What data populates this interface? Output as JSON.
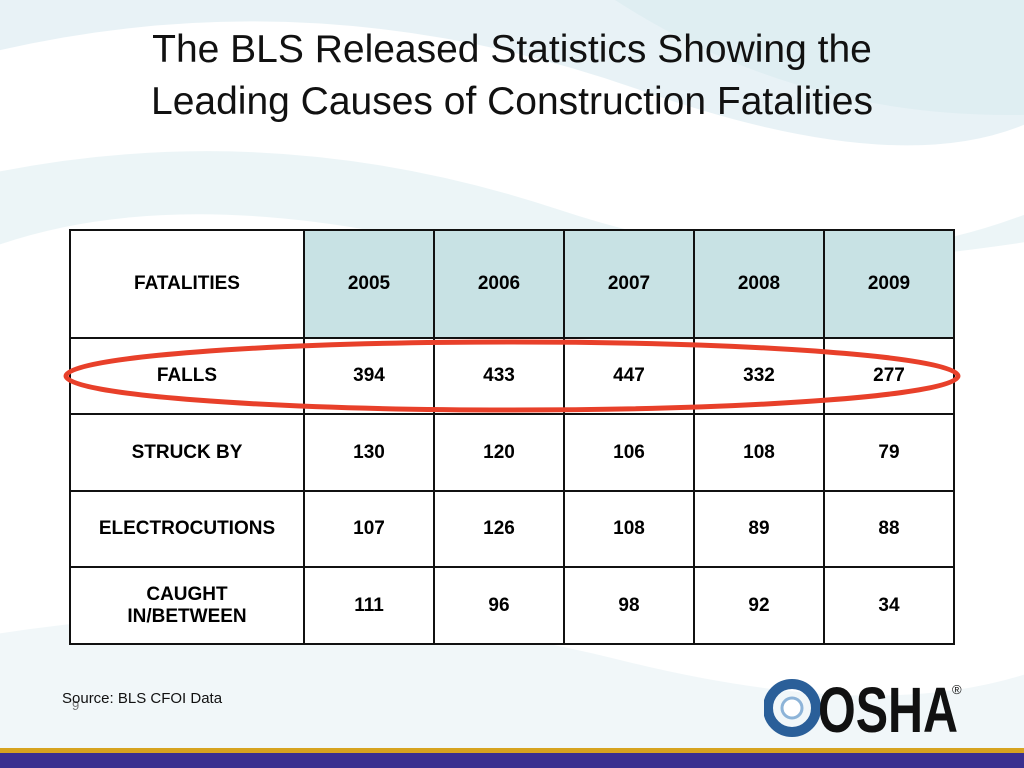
{
  "title": {
    "line1": "The BLS Released Statistics Showing the",
    "line2": "Leading Causes of Construction Fatalities"
  },
  "table": {
    "header": [
      "FATALITIES",
      "2005",
      "2006",
      "2007",
      "2008",
      "2009"
    ],
    "rows": [
      {
        "label": "FALLS",
        "values": [
          "394",
          "433",
          "447",
          "332",
          "277"
        ]
      },
      {
        "label": "STRUCK BY",
        "values": [
          "130",
          "120",
          "106",
          "108",
          "79"
        ]
      },
      {
        "label": "ELECTROCUTIONS",
        "values": [
          "107",
          "126",
          "108",
          "89",
          "88"
        ]
      },
      {
        "label_line1": "CAUGHT",
        "label_line2": "IN/BETWEEN",
        "values": [
          "111",
          "96",
          "98",
          "92",
          "34"
        ]
      }
    ]
  },
  "source": "Source: BLS CFOI Data",
  "slide_number": "9",
  "logo": {
    "text": "OSHA",
    "registered": "®"
  },
  "colors": {
    "header_cell": "#c8e2e4",
    "highlight_oval": "#e8402a",
    "logo_blue": "#2a5f99",
    "bar_gold": "#d6a31f",
    "bar_blue": "#3a2f8f",
    "background_swirl": "#e6f1f5"
  }
}
